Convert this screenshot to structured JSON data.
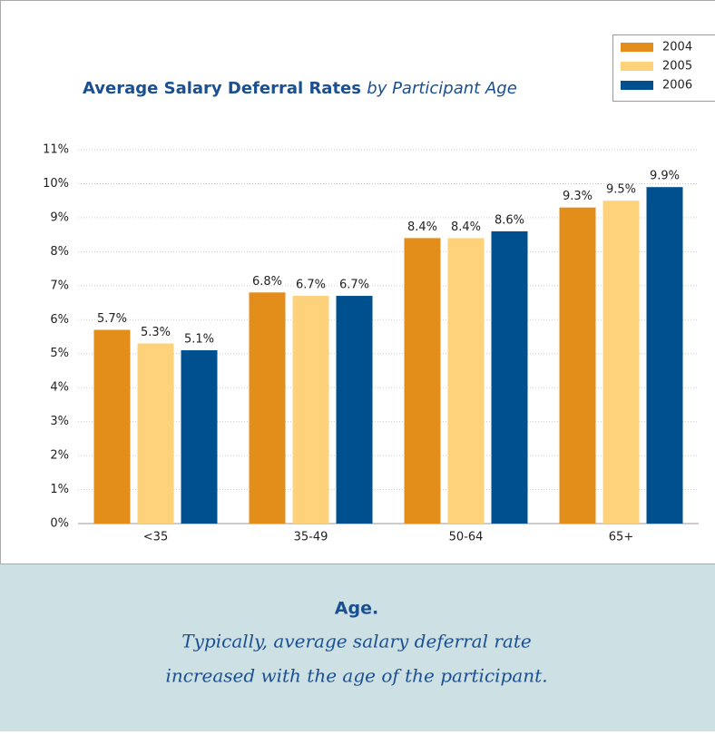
{
  "chart_data": {
    "type": "bar",
    "title": "Average Salary Deferral Rates",
    "subtitle": "by Participant Age",
    "categories": [
      "<35",
      "35-49",
      "50-64",
      "65+"
    ],
    "series": [
      {
        "name": "2004",
        "color": "#e38e1a",
        "values": [
          5.7,
          6.8,
          8.4,
          9.3
        ],
        "value_labels": [
          "5.7%",
          "6.8%",
          "8.4%",
          "9.3%"
        ]
      },
      {
        "name": "2005",
        "color": "#fdd27a",
        "values": [
          5.3,
          6.7,
          8.4,
          9.5
        ],
        "value_labels": [
          "5.3%",
          "6.7%",
          "8.4%",
          "9.5%"
        ]
      },
      {
        "name": "2006",
        "color": "#00508f",
        "values": [
          5.1,
          6.7,
          8.6,
          9.9
        ],
        "value_labels": [
          "5.1%",
          "6.7%",
          "8.6%",
          "9.9%"
        ]
      }
    ],
    "ylim": [
      0,
      11
    ],
    "yticks": [
      {
        "value": 0,
        "label": "0%"
      },
      {
        "value": 1,
        "label": "1%"
      },
      {
        "value": 2,
        "label": "2%"
      },
      {
        "value": 3,
        "label": "3%"
      },
      {
        "value": 4,
        "label": "4%"
      },
      {
        "value": 5,
        "label": "5%"
      },
      {
        "value": 6,
        "label": "6%"
      },
      {
        "value": 7,
        "label": "7%"
      },
      {
        "value": 8,
        "label": "8%"
      },
      {
        "value": 9,
        "label": "9%"
      },
      {
        "value": 10,
        "label": "10%"
      },
      {
        "value": 11,
        "label": "11%"
      }
    ],
    "grid": true,
    "legend": "top-right"
  },
  "caption": {
    "heading": "Age.",
    "lines": [
      "Typically, average salary deferral rate",
      "increased with the age of the participant."
    ]
  }
}
